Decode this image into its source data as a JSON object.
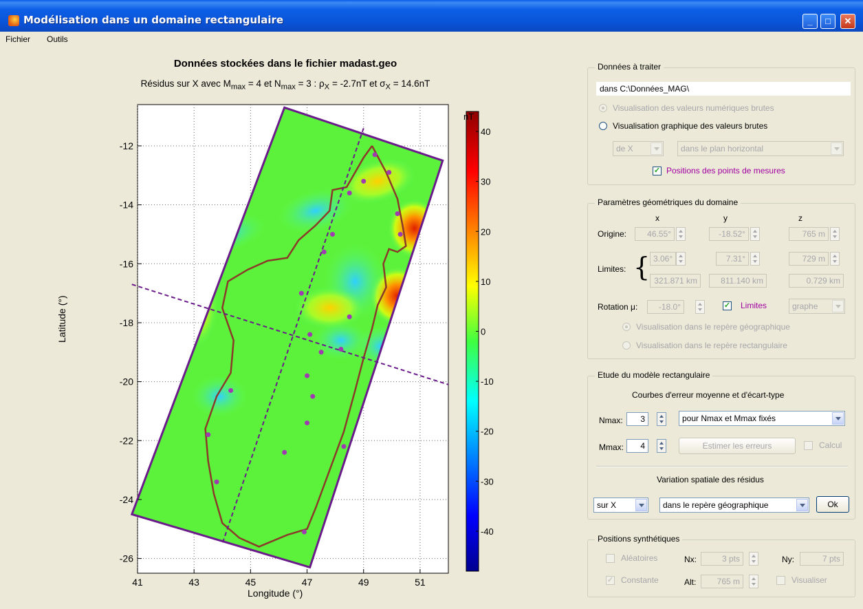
{
  "window": {
    "title": "Modélisation dans un domaine rectangulaire",
    "minimize": "_",
    "maximize": "□",
    "close": "✕"
  },
  "menu": [
    "Fichier",
    "Outils"
  ],
  "plot": {
    "title": "Données stockées dans le fichier madast.geo",
    "subtitle": "Résidus sur X avec M",
    "sub_mmax": "max",
    "sub_eq1": " = 4 et N",
    "sub_nmax": "max",
    "sub_eq2": " = 3 : ρ",
    "sub_x1": "X",
    "sub_eq3": " = -2.7nT et σ",
    "sub_x2": "X",
    "sub_eq4": " = 14.6nT",
    "xlabel": "Longitude (°)",
    "ylabel": "Latitude (°)",
    "colorbar_unit": "nT"
  },
  "chart_data": {
    "type": "heatmap",
    "xlim": [
      41,
      52
    ],
    "ylim": [
      -26.5,
      -10.6
    ],
    "xticks": [
      41,
      43,
      45,
      47,
      49,
      51
    ],
    "yticks": [
      -12,
      -14,
      -16,
      -18,
      -20,
      -22,
      -24,
      -26
    ],
    "colorbar_ticks": [
      40,
      30,
      20,
      10,
      0,
      -10,
      -20,
      -30,
      -40
    ],
    "colorbar_range": [
      -48,
      44
    ],
    "grid": true,
    "domain_corners": [
      [
        46.2,
        -10.7
      ],
      [
        51.8,
        -12.5
      ],
      [
        47.1,
        -26.3
      ],
      [
        40.8,
        -24.5
      ]
    ],
    "measurement_points": [
      [
        49.4,
        -12.3
      ],
      [
        49.0,
        -13.2
      ],
      [
        48.5,
        -13.6
      ],
      [
        49.9,
        -12.9
      ],
      [
        50.2,
        -14.3
      ],
      [
        50.3,
        -15.0
      ],
      [
        47.9,
        -15.0
      ],
      [
        47.6,
        -15.6
      ],
      [
        46.8,
        -17.0
      ],
      [
        48.5,
        -17.8
      ],
      [
        47.1,
        -18.4
      ],
      [
        47.5,
        -19.0
      ],
      [
        48.2,
        -18.9
      ],
      [
        47.0,
        -19.8
      ],
      [
        47.2,
        -20.5
      ],
      [
        47.0,
        -21.4
      ],
      [
        48.3,
        -22.2
      ],
      [
        46.2,
        -22.4
      ],
      [
        44.3,
        -20.3
      ],
      [
        43.5,
        -21.8
      ],
      [
        43.8,
        -23.4
      ],
      [
        46.9,
        -25.1
      ]
    ],
    "axis_lines": [
      [
        [
          49.0,
          -11.4
        ],
        [
          44.0,
          -25.5
        ]
      ],
      [
        [
          40.8,
          -16.7
        ],
        [
          52.0,
          -20.1
        ]
      ]
    ]
  },
  "panels": {
    "donnees": {
      "legend": "Données à traiter",
      "path": "dans C:\\Données_MAG\\",
      "radio1": "Visualisation des valeurs numériques brutes",
      "radio2": "Visualisation graphique des valeurs brutes",
      "sel1": "de X",
      "sel2": "dans le plan horizontal",
      "check": "Positions des points de mesures"
    },
    "geom": {
      "legend": "Paramètres géométriques du domaine",
      "hx": "x",
      "hy": "y",
      "hz": "z",
      "origine": "Origine:",
      "o_x": "46.55°",
      "o_y": "-18.52°",
      "o_z": "765 m",
      "limites": "Limites:",
      "l_x": "3.06°",
      "l_y": "7.31°",
      "l_z": "729 m",
      "k_x": "321.871 km",
      "k_y": "811.140 km",
      "k_z": "0.729 km",
      "rotation": "Rotation μ:",
      "r_val": "-18.0°",
      "limites_check": "Limites",
      "graphe": "graphe",
      "radio_geo": "Visualisation dans le repère géographique",
      "radio_rect": "Visualisation dans le repère rectangulaire"
    },
    "etude": {
      "legend": "Etude du modèle rectangulaire",
      "courbes": "Courbes d'erreur moyenne et d'écart-type",
      "nmax": "Nmax:",
      "nmax_val": "3",
      "mmax": "Mmax:",
      "mmax_val": "4",
      "mode": "pour Nmax et Mmax fixés",
      "estimer": "Estimer les erreurs",
      "calcul": "Calcul",
      "variation": "Variation spatiale des résidus",
      "surx": "sur X",
      "repere": "dans le repère géographique",
      "ok": "Ok"
    },
    "synth": {
      "legend": "Positions synthétiques",
      "aleatoires": "Aléatoires",
      "nx": "Nx:",
      "nx_val": "3 pts",
      "ny": "Ny:",
      "ny_val": "7 pts",
      "constante": "Constante",
      "alt": "Alt:",
      "alt_val": "765 m",
      "visualiser": "Visualiser"
    }
  }
}
